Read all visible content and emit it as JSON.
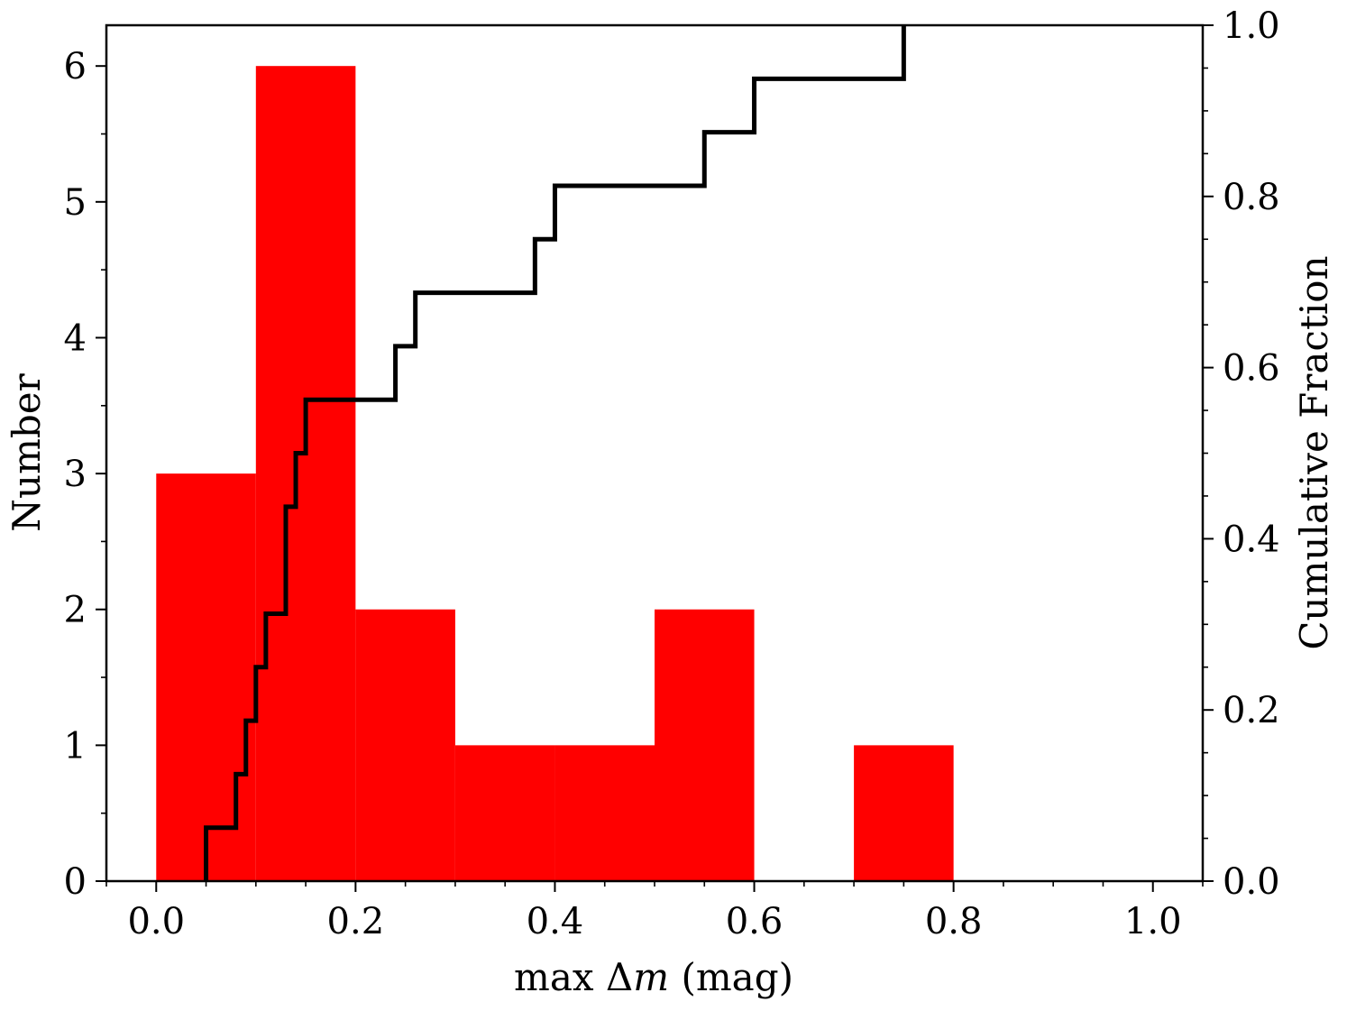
{
  "chart_data": {
    "type": "bar",
    "xlabel": "max Δm (mag)",
    "xlabel_parts": {
      "pre": "max Δ",
      "italic": "m",
      "post": " (mag)"
    },
    "ylabel_left": "Number",
    "ylabel_right": "Cumulative Fraction",
    "xlim": [
      -0.05,
      1.05
    ],
    "ylim_left": [
      0,
      6.3
    ],
    "ylim_right": [
      0,
      1.0
    ],
    "x_ticks": [
      0.0,
      0.2,
      0.4,
      0.6,
      0.8,
      1.0
    ],
    "x_tick_labels": [
      "0.0",
      "0.2",
      "0.4",
      "0.6",
      "0.8",
      "1.0"
    ],
    "y_ticks_left": [
      0,
      1,
      2,
      3,
      4,
      5,
      6
    ],
    "y_tick_labels_left": [
      "0",
      "1",
      "2",
      "3",
      "4",
      "5",
      "6"
    ],
    "y_ticks_right": [
      0.0,
      0.2,
      0.4,
      0.6,
      0.8,
      1.0
    ],
    "y_tick_labels_right": [
      "0.0",
      "0.2",
      "0.4",
      "0.6",
      "0.8",
      "1.0"
    ],
    "grid": false,
    "histogram": {
      "color": "#ff0000",
      "bin_edges": [
        0.0,
        0.1,
        0.2,
        0.3,
        0.4,
        0.5,
        0.6,
        0.7,
        0.8
      ],
      "counts": [
        3,
        6,
        2,
        1,
        1,
        2,
        0,
        1
      ]
    },
    "cumulative": {
      "color": "#000000",
      "x": [
        0.05,
        0.08,
        0.09,
        0.1,
        0.11,
        0.13,
        0.14,
        0.15,
        0.24,
        0.26,
        0.38,
        0.4,
        0.55,
        0.6,
        0.75
      ],
      "y": [
        0.0625,
        0.125,
        0.1875,
        0.25,
        0.3125,
        0.4375,
        0.5,
        0.5625,
        0.625,
        0.6875,
        0.75,
        0.8125,
        0.875,
        0.9375,
        1.0
      ]
    }
  }
}
